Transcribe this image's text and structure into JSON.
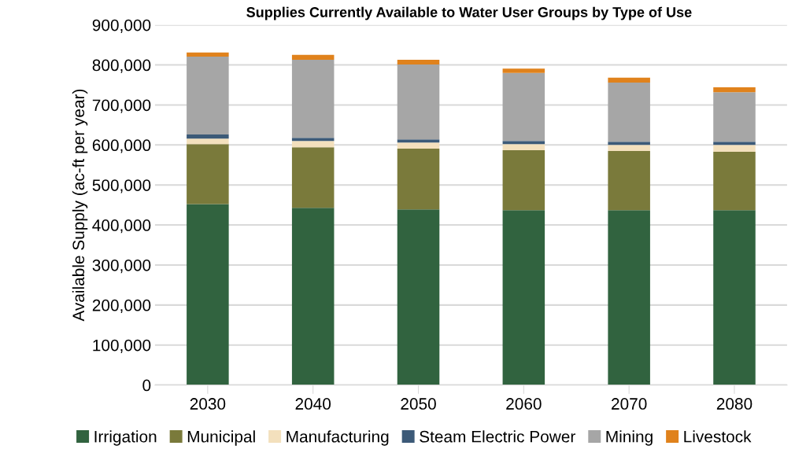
{
  "chart_data": {
    "type": "bar",
    "stacked": true,
    "title": "Supplies Currently Available to Water User Groups by Type of Use",
    "ylabel": "Available Supply (ac-ft per year)",
    "categories": [
      "2030",
      "2040",
      "2050",
      "2060",
      "2070",
      "2080"
    ],
    "series": [
      {
        "name": "Irrigation",
        "color": "#31633f",
        "values": [
          452000,
          443000,
          439000,
          437000,
          437000,
          437000
        ]
      },
      {
        "name": "Municipal",
        "color": "#7a7a3b",
        "values": [
          150000,
          151000,
          152000,
          150000,
          148000,
          146000
        ]
      },
      {
        "name": "Manufacturing",
        "color": "#f3e0bd",
        "values": [
          14000,
          16000,
          15000,
          15000,
          15000,
          17000
        ]
      },
      {
        "name": "Steam Electric Power",
        "color": "#3c5a78",
        "values": [
          10000,
          8000,
          8000,
          8000,
          8000,
          8000
        ]
      },
      {
        "name": "Mining",
        "color": "#a6a6a6",
        "values": [
          195000,
          195000,
          187000,
          170000,
          148000,
          124000
        ]
      },
      {
        "name": "Livestock",
        "color": "#e0821c",
        "values": [
          10000,
          12000,
          12000,
          11000,
          12000,
          12000
        ]
      }
    ],
    "ylim": [
      0,
      900000
    ],
    "yticks": [
      {
        "value": 0,
        "label": "0"
      },
      {
        "value": 100000,
        "label": "100,000"
      },
      {
        "value": 200000,
        "label": "200,000"
      },
      {
        "value": 300000,
        "label": "300,000"
      },
      {
        "value": 400000,
        "label": "400,000"
      },
      {
        "value": 500000,
        "label": "500,000"
      },
      {
        "value": 600000,
        "label": "600,000"
      },
      {
        "value": 700000,
        "label": "700,000"
      },
      {
        "value": 800000,
        "label": "800,000"
      },
      {
        "value": 900000,
        "label": "900,000"
      }
    ],
    "grid": "y",
    "legend": "bottom"
  }
}
